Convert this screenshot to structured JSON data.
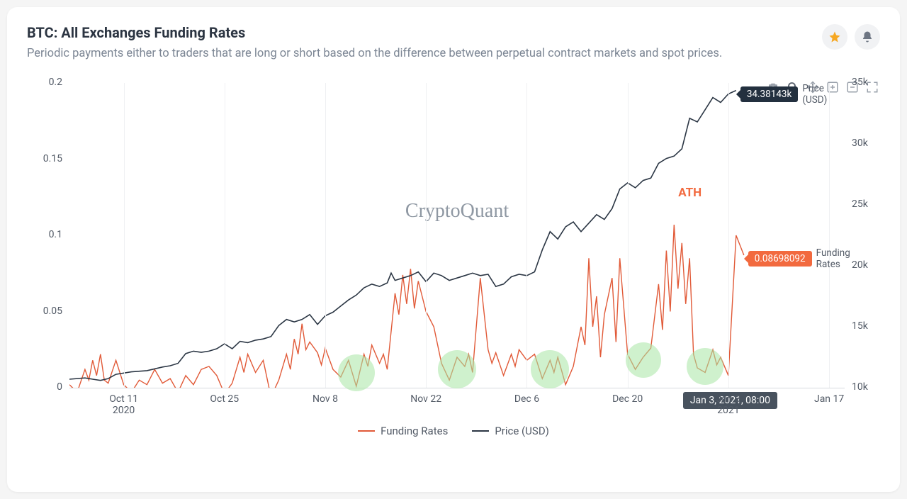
{
  "header": {
    "title": "BTC: All Exchanges Funding Rates",
    "subtitle": "Periodic payments either to traders that are long or short based on the difference between perpetual contract markets and spot prices."
  },
  "watermark": "CryptoQuant",
  "colors": {
    "card_bg": "#ffffff",
    "title": "#2c3542",
    "subtitle": "#7c8694",
    "axis_text": "#525a66",
    "grid": "#eff0f2",
    "baseline": "#d7dadf",
    "price_line": "#2b3644",
    "funding_line": "#e15a38",
    "highlight": "#a8e5a4",
    "callout_price_bg": "#23303f",
    "callout_funding_bg": "#f26a3f",
    "tooltip_bg": "#48525e",
    "star": "#f6a823",
    "bell": "#6e7683",
    "toolbar_icon": "#9aa1ab"
  },
  "chart": {
    "type": "line-dual-axis",
    "left_axis": {
      "label": "Funding Rates",
      "min": 0,
      "max": 0.2,
      "ticks": [
        0,
        0.05,
        0.1,
        0.15,
        0.2
      ]
    },
    "right_axis": {
      "label": "Price (USD)",
      "min": 10000,
      "max": 35000,
      "ticks": [
        "10k",
        "15k",
        "20k",
        "25k",
        "30k",
        "35k"
      ]
    },
    "x_axis": {
      "labels": [
        {
          "pos": 7,
          "text": "Oct 11",
          "sub": "2020"
        },
        {
          "pos": 20,
          "text": "Oct 25"
        },
        {
          "pos": 33,
          "text": "Nov 8"
        },
        {
          "pos": 46,
          "text": "Nov 22"
        },
        {
          "pos": 59,
          "text": "Dec 6"
        },
        {
          "pos": 72,
          "text": "Dec 20"
        },
        {
          "pos": 85,
          "text": "Jan 3",
          "sub": "2021"
        },
        {
          "pos": 98,
          "text": "Jan 17"
        }
      ],
      "grid_positions": [
        7,
        20,
        33,
        46,
        59,
        72,
        85,
        98
      ]
    },
    "funding_rates": [
      [
        0,
        0.002
      ],
      [
        1,
        -0.003
      ],
      [
        2,
        0.012
      ],
      [
        2.5,
        0.005
      ],
      [
        3,
        0.018
      ],
      [
        3.5,
        0.008
      ],
      [
        4,
        0.022
      ],
      [
        4.5,
        0.005
      ],
      [
        5,
        0.003
      ],
      [
        6,
        0.018
      ],
      [
        7,
        0.002
      ],
      [
        8,
        -0.003
      ],
      [
        9,
        0.005
      ],
      [
        10,
        0.002
      ],
      [
        11,
        0.012
      ],
      [
        12,
        0.003
      ],
      [
        13,
        0.006
      ],
      [
        14,
        -0.003
      ],
      [
        15,
        0.008
      ],
      [
        16,
        0.002
      ],
      [
        17,
        0.012
      ],
      [
        18,
        0.014
      ],
      [
        19,
        0.008
      ],
      [
        20,
        -0.004
      ],
      [
        21,
        0.003
      ],
      [
        22,
        0.02
      ],
      [
        22.5,
        0.01
      ],
      [
        23,
        0.022
      ],
      [
        24,
        0.01
      ],
      [
        25,
        0.018
      ],
      [
        26,
        -0.006
      ],
      [
        27,
        0.005
      ],
      [
        28,
        0.022
      ],
      [
        28.5,
        0.012
      ],
      [
        29,
        0.032
      ],
      [
        29.5,
        0.022
      ],
      [
        30,
        0.042
      ],
      [
        30.5,
        0.025
      ],
      [
        31,
        0.03
      ],
      [
        32,
        0.023
      ],
      [
        32.5,
        0.015
      ],
      [
        33,
        0.026
      ],
      [
        34,
        0.012
      ],
      [
        35,
        0.007
      ],
      [
        36,
        0.018
      ],
      [
        37,
        0.001
      ],
      [
        38,
        0.022
      ],
      [
        38.5,
        0.014
      ],
      [
        39,
        0.028
      ],
      [
        40,
        0.016
      ],
      [
        40.5,
        0.022
      ],
      [
        41,
        0.012
      ],
      [
        42,
        0.062
      ],
      [
        42.5,
        0.048
      ],
      [
        43,
        0.074
      ],
      [
        43.5,
        0.055
      ],
      [
        44,
        0.078
      ],
      [
        44.5,
        0.052
      ],
      [
        45,
        0.07
      ],
      [
        46,
        0.05
      ],
      [
        47,
        0.04
      ],
      [
        48,
        0.016
      ],
      [
        49,
        0.005
      ],
      [
        50,
        0.02
      ],
      [
        51,
        0.014
      ],
      [
        51.5,
        0.022
      ],
      [
        52,
        0.01
      ],
      [
        53,
        0.072
      ],
      [
        54,
        0.025
      ],
      [
        54.5,
        0.016
      ],
      [
        55,
        0.023
      ],
      [
        56,
        0.008
      ],
      [
        57,
        0.022
      ],
      [
        57.5,
        0.014
      ],
      [
        58,
        0.025
      ],
      [
        59,
        0.018
      ],
      [
        60,
        0.022
      ],
      [
        61,
        0.006
      ],
      [
        62,
        0.018
      ],
      [
        62.5,
        0.01
      ],
      [
        63,
        0.02
      ],
      [
        64,
        0.002
      ],
      [
        65,
        0.014
      ],
      [
        66,
        0.04
      ],
      [
        66.5,
        0.028
      ],
      [
        67,
        0.085
      ],
      [
        67.5,
        0.04
      ],
      [
        68,
        0.06
      ],
      [
        68.5,
        0.02
      ],
      [
        69,
        0.048
      ],
      [
        70,
        0.072
      ],
      [
        70.5,
        0.03
      ],
      [
        71,
        0.085
      ],
      [
        72,
        0.022
      ],
      [
        73,
        0.012
      ],
      [
        74,
        0.02
      ],
      [
        75,
        0.026
      ],
      [
        76,
        0.068
      ],
      [
        76.5,
        0.038
      ],
      [
        77,
        0.09
      ],
      [
        77.5,
        0.05
      ],
      [
        78,
        0.107
      ],
      [
        78.5,
        0.065
      ],
      [
        79,
        0.095
      ],
      [
        79.5,
        0.055
      ],
      [
        80,
        0.085
      ],
      [
        80.5,
        0.022
      ],
      [
        81,
        0.013
      ],
      [
        82,
        0.01
      ],
      [
        83,
        0.025
      ],
      [
        83.5,
        0.015
      ],
      [
        84,
        0.02
      ],
      [
        85,
        0.008
      ],
      [
        86,
        0.1
      ],
      [
        87,
        0.087
      ]
    ],
    "price_usd": [
      [
        0,
        10700
      ],
      [
        2,
        10800
      ],
      [
        3,
        10700
      ],
      [
        4,
        10600
      ],
      [
        5,
        10750
      ],
      [
        6,
        11100
      ],
      [
        8,
        11300
      ],
      [
        10,
        11400
      ],
      [
        12,
        11700
      ],
      [
        13,
        11800
      ],
      [
        14,
        12000
      ],
      [
        15,
        12800
      ],
      [
        16,
        13000
      ],
      [
        17,
        12900
      ],
      [
        18,
        13000
      ],
      [
        19,
        13200
      ],
      [
        20,
        13600
      ],
      [
        21,
        13200
      ],
      [
        22,
        13800
      ],
      [
        23,
        13700
      ],
      [
        24,
        13900
      ],
      [
        25,
        14000
      ],
      [
        26,
        14200
      ],
      [
        27,
        15100
      ],
      [
        28,
        15600
      ],
      [
        29,
        15400
      ],
      [
        30,
        15600
      ],
      [
        31,
        16000
      ],
      [
        32,
        15200
      ],
      [
        33,
        15900
      ],
      [
        34,
        16200
      ],
      [
        35,
        16700
      ],
      [
        36,
        17200
      ],
      [
        37,
        17600
      ],
      [
        38,
        18200
      ],
      [
        39,
        18500
      ],
      [
        40,
        18300
      ],
      [
        41,
        18600
      ],
      [
        41.5,
        19400
      ],
      [
        42,
        18800
      ],
      [
        43,
        19000
      ],
      [
        44,
        19200
      ],
      [
        45,
        19500
      ],
      [
        46,
        18700
      ],
      [
        47,
        19400
      ],
      [
        48,
        19200
      ],
      [
        49,
        18800
      ],
      [
        50,
        19000
      ],
      [
        51,
        19200
      ],
      [
        52,
        19400
      ],
      [
        53,
        19200
      ],
      [
        54,
        19300
      ],
      [
        55,
        18300
      ],
      [
        56,
        18500
      ],
      [
        57,
        19100
      ],
      [
        58,
        19300
      ],
      [
        59,
        19200
      ],
      [
        60,
        19500
      ],
      [
        61,
        21300
      ],
      [
        62,
        22800
      ],
      [
        63,
        22200
      ],
      [
        64,
        23200
      ],
      [
        65,
        23600
      ],
      [
        66,
        22800
      ],
      [
        67,
        23500
      ],
      [
        68,
        24200
      ],
      [
        69,
        23800
      ],
      [
        70,
        24700
      ],
      [
        71,
        26300
      ],
      [
        72,
        26800
      ],
      [
        73,
        26400
      ],
      [
        74,
        27000
      ],
      [
        75,
        27200
      ],
      [
        76,
        28400
      ],
      [
        77,
        28800
      ],
      [
        78,
        29000
      ],
      [
        79,
        29600
      ],
      [
        80,
        32100
      ],
      [
        81,
        31800
      ],
      [
        82,
        32800
      ],
      [
        83,
        33800
      ],
      [
        84,
        33400
      ],
      [
        85,
        34100
      ],
      [
        86,
        34381
      ]
    ],
    "highlights": [
      {
        "x": 37,
        "y_funding": 0.01,
        "r": 26
      },
      {
        "x": 50,
        "y_funding": 0.012,
        "r": 27
      },
      {
        "x": 62,
        "y_funding": 0.012,
        "r": 27
      },
      {
        "x": 74,
        "y_funding": 0.018,
        "r": 25
      },
      {
        "x": 82,
        "y_funding": 0.014,
        "r": 26
      }
    ],
    "annotations": {
      "ath": {
        "text": "ATH",
        "x": 79,
        "y_price": 26000
      },
      "price_callout": {
        "value": "34.38143k",
        "label": "Price (USD)"
      },
      "funding_callout": {
        "value": "0.08698092",
        "label": "Funding Rates"
      },
      "tooltip": {
        "text": "Jan 3, 2021, 08:00",
        "x": 86
      }
    }
  },
  "legend": [
    {
      "name": "Funding Rates",
      "color": "#e15a38"
    },
    {
      "name": "Price (USD)",
      "color": "#2b3644"
    }
  ],
  "toolbar": [
    "camera",
    "zoom",
    "pan",
    "plus",
    "minus",
    "expand"
  ]
}
